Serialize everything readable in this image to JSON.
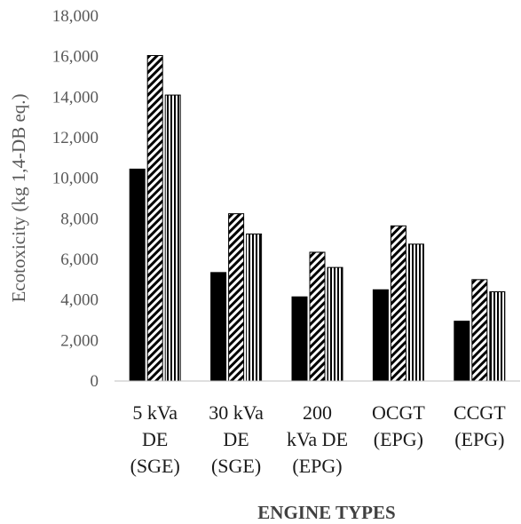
{
  "chart_data": {
    "type": "bar",
    "title": "",
    "xlabel": "ENGINE TYPES",
    "ylabel": "Ecotoxicity (kg 1,4-DB eq.)",
    "ylim": [
      0,
      18000
    ],
    "y_ticks": [
      "0",
      "2,000",
      "4,000",
      "6,000",
      "8,000",
      "10,000",
      "12,000",
      "14,000",
      "16,000",
      "18,000"
    ],
    "categories": [
      [
        "5 kVa",
        "DE",
        "(SGE)"
      ],
      [
        "30 kVa",
        "DE",
        "(SGE)"
      ],
      [
        "200",
        "kVa DE",
        "(EPG)"
      ],
      [
        "OCGT",
        "(EPG)"
      ],
      [
        "CCGT",
        "(EPG)"
      ]
    ],
    "series": [
      {
        "pattern": "solid",
        "color": "#000000",
        "values": [
          10450,
          5350,
          4150,
          4500,
          2950
        ]
      },
      {
        "pattern": "diagonal-hatch",
        "color": "#000000",
        "values": [
          16050,
          8250,
          6350,
          7650,
          5000
        ]
      },
      {
        "pattern": "vertical-stripes",
        "color": "#000000",
        "values": [
          14100,
          7250,
          5600,
          6750,
          4400
        ]
      }
    ],
    "grid": false,
    "legend": "none"
  }
}
